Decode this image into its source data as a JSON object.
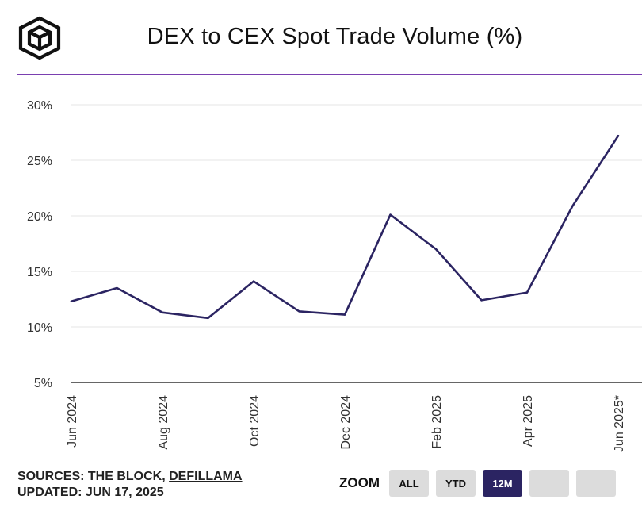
{
  "header": {
    "title": "DEX to CEX Spot Trade Volume (%)"
  },
  "footer": {
    "sources_prefix": "SOURCES: THE BLOCK, ",
    "sources_link": "DEFILLAMA",
    "updated": "UPDATED: JUN 17, 2025"
  },
  "zoom": {
    "label": "ZOOM",
    "buttons": [
      {
        "label": "ALL",
        "active": false
      },
      {
        "label": "YTD",
        "active": false
      },
      {
        "label": "12M",
        "active": true
      },
      {
        "label": "",
        "active": false
      },
      {
        "label": "",
        "active": false
      }
    ]
  },
  "colors": {
    "line": "#2b2462",
    "grid": "#e6e6e6",
    "axis": "#333333",
    "accent_rule": "#7a3fb0"
  },
  "chart_data": {
    "type": "line",
    "title": "DEX to CEX Spot Trade Volume (%)",
    "xlabel": "",
    "ylabel": "",
    "ylim": [
      5,
      30
    ],
    "yticks": [
      "5%",
      "10%",
      "15%",
      "20%",
      "25%",
      "30%"
    ],
    "ytick_values": [
      5,
      10,
      15,
      20,
      25,
      30
    ],
    "x": [
      "Jun 2024",
      "Jul 2024",
      "Aug 2024",
      "Sep 2024",
      "Oct 2024",
      "Nov 2024",
      "Dec 2024",
      "Jan 2025",
      "Feb 2025",
      "Mar 2025",
      "Apr 2025",
      "May 2025",
      "Jun 2025*"
    ],
    "xtick_labels": [
      "Jun 2024",
      "",
      "Aug 2024",
      "",
      "Oct 2024",
      "",
      "Dec 2024",
      "",
      "Feb 2025",
      "",
      "Apr 2025",
      "",
      "Jun 2025*"
    ],
    "series": [
      {
        "values": [
          12.3,
          13.5,
          11.3,
          10.8,
          14.1,
          11.4,
          11.1,
          20.1,
          17.0,
          12.4,
          13.1,
          20.9,
          27.2
        ]
      }
    ],
    "grid": true,
    "legend": "none"
  }
}
